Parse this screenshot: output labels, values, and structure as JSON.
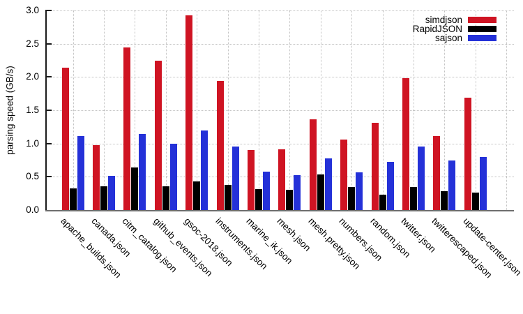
{
  "chart_data": {
    "type": "bar",
    "title": "",
    "xlabel": "",
    "ylabel": "parsing speed (GB/s)",
    "ylim": [
      0.0,
      3.0
    ],
    "ytick_step": 0.5,
    "ytick_labels": [
      "0.0",
      "0.5",
      "1.0",
      "1.5",
      "2.0",
      "2.5",
      "3.0"
    ],
    "grid": "dotted",
    "legend_position": "top-right",
    "categories": [
      "apache_builds.json",
      "canada.json",
      "citm_catalog.json",
      "github_events.json",
      "gsoc-2018.json",
      "instruments.json",
      "marine_ik.json",
      "mesh.json",
      "mesh.pretty.json",
      "numbers.json",
      "random.json",
      "twitter.json",
      "twitterescaped.json",
      "update-center.json"
    ],
    "series": [
      {
        "name": "simdjson",
        "color": "#cf1423",
        "values": [
          2.14,
          0.98,
          2.44,
          2.24,
          2.93,
          1.94,
          0.9,
          0.91,
          1.36,
          1.06,
          1.31,
          1.98,
          1.11,
          1.69
        ]
      },
      {
        "name": "RapidJSON",
        "color": "#000000",
        "values": [
          0.33,
          0.36,
          0.64,
          0.36,
          0.43,
          0.38,
          0.31,
          0.3,
          0.54,
          0.35,
          0.23,
          0.35,
          0.28,
          0.26
        ]
      },
      {
        "name": "sajson",
        "color": "#2431d8",
        "values": [
          1.11,
          0.51,
          1.14,
          1.0,
          1.2,
          0.95,
          0.58,
          0.52,
          0.78,
          0.57,
          0.72,
          0.95,
          0.74,
          0.8
        ]
      }
    ]
  },
  "colors": {
    "background": "#ffffff",
    "grid": "#c2c2c2",
    "y_axis": "#1a1a1a",
    "x_axis": "#6e6e6e",
    "text": "#000000"
  }
}
